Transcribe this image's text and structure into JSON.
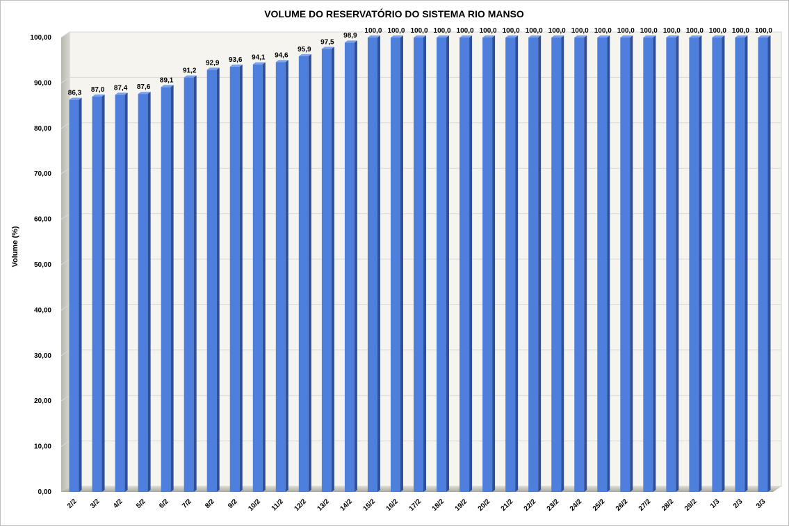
{
  "chart_data": {
    "type": "bar",
    "title": "VOLUME DO RESERVATÓRIO DO SISTEMA RIO MANSO",
    "ylabel": "Volume (%)",
    "xlabel": "",
    "ylim": [
      0,
      100
    ],
    "yticks": [
      "0,00",
      "10,00",
      "20,00",
      "30,00",
      "40,00",
      "50,00",
      "60,00",
      "70,00",
      "80,00",
      "90,00",
      "100,00"
    ],
    "grid": true,
    "legend": "none",
    "bar_color": "#4f7fdc",
    "categories": [
      "2/2",
      "3/2",
      "4/2",
      "5/2",
      "6/2",
      "7/2",
      "8/2",
      "9/2",
      "10/2",
      "11/2",
      "12/2",
      "13/2",
      "14/2",
      "15/2",
      "16/2",
      "17/2",
      "18/2",
      "19/2",
      "20/2",
      "21/2",
      "22/2",
      "23/2",
      "24/2",
      "25/2",
      "26/2",
      "27/2",
      "28/2",
      "29/2",
      "1/3",
      "2/3",
      "3/3"
    ],
    "values": [
      86.3,
      87.0,
      87.4,
      87.6,
      89.1,
      91.2,
      92.9,
      93.6,
      94.1,
      94.6,
      95.9,
      97.5,
      98.9,
      100.0,
      100.0,
      100.0,
      100.0,
      100.0,
      100.0,
      100.0,
      100.0,
      100.0,
      100.0,
      100.0,
      100.0,
      100.0,
      100.0,
      100.0,
      100.0,
      100.0,
      100.0
    ],
    "data_labels": [
      "86,3",
      "87,0",
      "87,4",
      "87,6",
      "89,1",
      "91,2",
      "92,9",
      "93,6",
      "94,1",
      "94,6",
      "95,9",
      "97,5",
      "98,9",
      "100,0",
      "100,0",
      "100,0",
      "100,0",
      "100,0",
      "100,0",
      "100,0",
      "100,0",
      "100,0",
      "100,0",
      "100,0",
      "100,0",
      "100,0",
      "100,0",
      "100,0",
      "100,0",
      "100,0",
      "100,0"
    ]
  }
}
